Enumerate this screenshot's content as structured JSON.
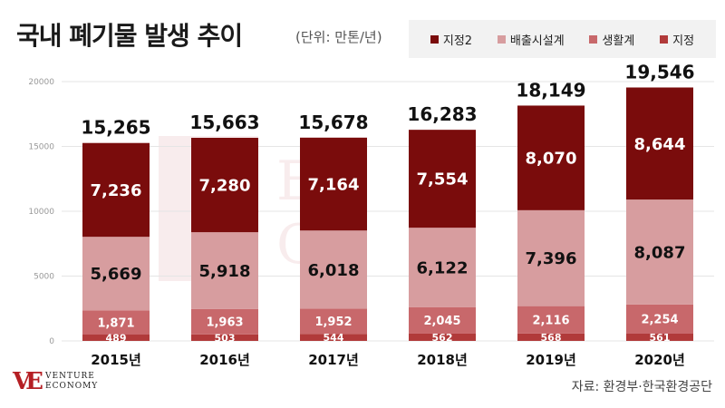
{
  "title": "국내 폐기물 발생 추이",
  "unit": "(단위: 만톤/년)",
  "source": "자료: 환경부·한국환경공단",
  "logo": {
    "mark": "VE",
    "line1": "VENTURE",
    "line2": "ECONOMY"
  },
  "colors": {
    "jijeong": "#b13a3a",
    "saenghwal": "#c8686b",
    "baechul": "#d79d9f",
    "jijeong2": "#7a0c0c",
    "grid": "#e5e5e5"
  },
  "chart_data": {
    "type": "bar",
    "stacked": true,
    "categories": [
      "2015년",
      "2016년",
      "2017년",
      "2018년",
      "2019년",
      "2020년"
    ],
    "series": [
      {
        "name": "지정",
        "values": [
          489,
          503,
          544,
          562,
          568,
          561
        ]
      },
      {
        "name": "생활계",
        "values": [
          1871,
          1963,
          1952,
          2045,
          2116,
          2254
        ]
      },
      {
        "name": "배출시설계",
        "values": [
          5669,
          5918,
          6018,
          6122,
          7396,
          8087
        ]
      },
      {
        "name": "지정2",
        "values": [
          7236,
          7280,
          7164,
          7554,
          8070,
          8644
        ]
      }
    ],
    "totals": [
      15265,
      15663,
      15678,
      16283,
      18149,
      19546
    ],
    "yticks": [
      0,
      5000,
      10000,
      15000,
      20000
    ],
    "ylim": [
      0,
      20000
    ],
    "grid": true,
    "legend": "top-right"
  }
}
